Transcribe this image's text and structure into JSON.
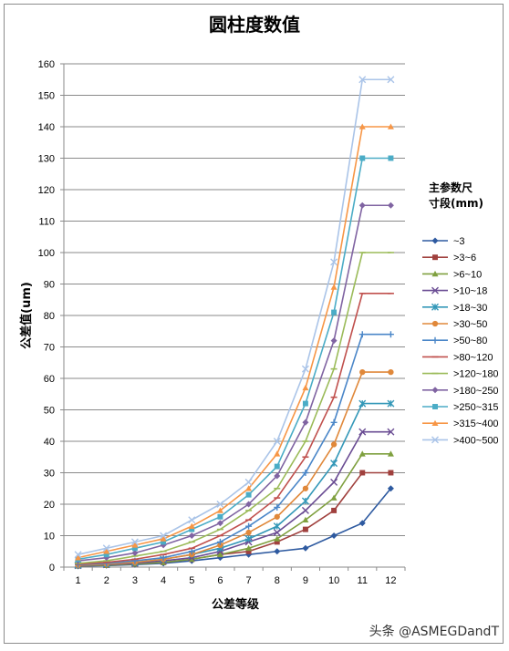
{
  "chart_data": {
    "type": "line",
    "title": "圆柱度数值",
    "xlabel": "公差等级",
    "ylabel": "公差值(um)",
    "legend_title": [
      "主参数尺",
      "寸段(mm)"
    ],
    "legend_position": "right",
    "grid": true,
    "ylim": [
      0,
      160
    ],
    "y_ticks": [
      0,
      10,
      20,
      30,
      40,
      50,
      60,
      70,
      80,
      90,
      100,
      110,
      120,
      130,
      140,
      150,
      160
    ],
    "x": [
      1,
      2,
      3,
      4,
      5,
      6,
      7,
      8,
      9,
      10,
      11,
      12
    ],
    "series": [
      {
        "name": "~3",
        "color": "#2e5aa0",
        "marker": "diamond",
        "values": [
          0.3,
          0.5,
          0.8,
          1.2,
          2,
          3,
          4,
          5,
          6,
          10,
          14,
          25
        ]
      },
      {
        "name": ">3~6",
        "color": "#a0403d",
        "marker": "square",
        "values": [
          0.4,
          0.6,
          1,
          1.5,
          2.5,
          4,
          5,
          8,
          12,
          18,
          30,
          30
        ]
      },
      {
        "name": ">6~10",
        "color": "#7fa03f",
        "marker": "triangle",
        "values": [
          0.4,
          0.6,
          1,
          1.5,
          2.5,
          4,
          6,
          9,
          15,
          22,
          36,
          36
        ]
      },
      {
        "name": ">10~18",
        "color": "#6a4c93",
        "marker": "x",
        "values": [
          0.5,
          0.8,
          1.2,
          2,
          3,
          5,
          8,
          11,
          18,
          27,
          43,
          43
        ]
      },
      {
        "name": ">18~30",
        "color": "#3498b8",
        "marker": "star",
        "values": [
          0.6,
          1,
          1.5,
          2.5,
          4,
          6,
          9,
          13,
          21,
          33,
          52,
          52
        ]
      },
      {
        "name": ">30~50",
        "color": "#e0883a",
        "marker": "circle",
        "values": [
          0.6,
          1,
          1.5,
          2.5,
          4,
          7,
          11,
          16,
          25,
          39,
          62,
          62
        ]
      },
      {
        "name": ">50~80",
        "color": "#4a86c8",
        "marker": "plus",
        "values": [
          0.8,
          1.2,
          2,
          3,
          5,
          8,
          13,
          19,
          30,
          46,
          74,
          74
        ]
      },
      {
        "name": ">80~120",
        "color": "#c0504d",
        "marker": "dash",
        "values": [
          1,
          1.5,
          2.5,
          4,
          6,
          10,
          15,
          22,
          35,
          54,
          87,
          87
        ]
      },
      {
        "name": ">120~180",
        "color": "#9bbb59",
        "marker": "dash",
        "values": [
          1.2,
          2,
          3.5,
          5,
          8,
          12,
          18,
          25,
          40,
          63,
          100,
          100
        ]
      },
      {
        "name": ">180~250",
        "color": "#8064a2",
        "marker": "diamond",
        "values": [
          2,
          3,
          4.5,
          7,
          10,
          14,
          20,
          29,
          46,
          72,
          115,
          115
        ]
      },
      {
        "name": ">250~315",
        "color": "#4bacc6",
        "marker": "square",
        "values": [
          2.5,
          4,
          6,
          8,
          12,
          16,
          23,
          32,
          52,
          81,
          130,
          130
        ]
      },
      {
        "name": ">315~400",
        "color": "#f79646",
        "marker": "triangle",
        "values": [
          3,
          5,
          7,
          9,
          13,
          18,
          25,
          36,
          57,
          89,
          140,
          140
        ]
      },
      {
        "name": ">400~500",
        "color": "#aac4e8",
        "marker": "x",
        "values": [
          4,
          6,
          8,
          10,
          15,
          20,
          27,
          40,
          63,
          97,
          155,
          155
        ]
      }
    ]
  },
  "watermark": "头条 @ASMEGDandT"
}
